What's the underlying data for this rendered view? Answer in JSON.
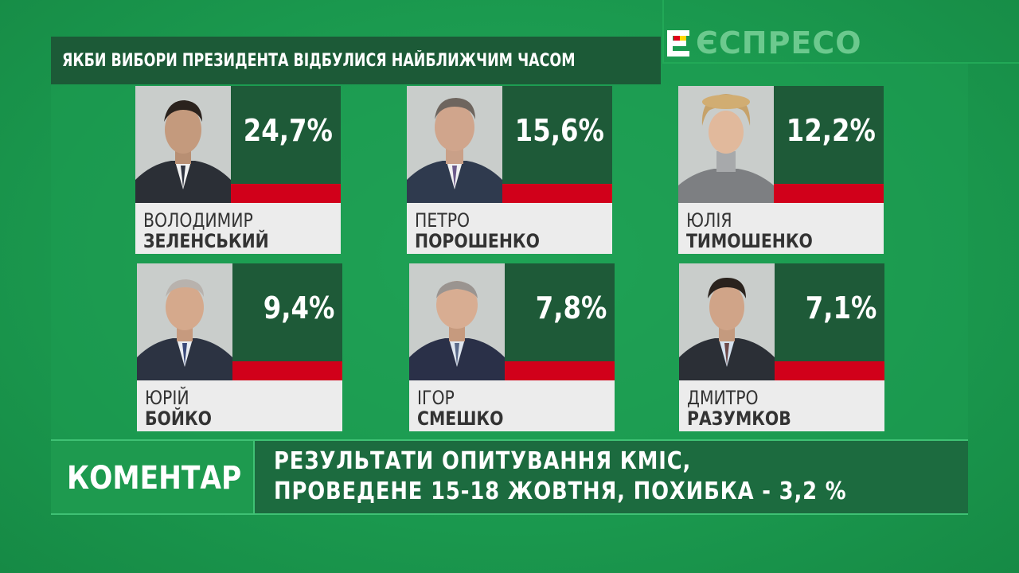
{
  "channel": {
    "logo_text": "ЄСПРЕСО"
  },
  "title": "ЯКБИ ВИБОРИ ПРЕЗИДЕНТА ВІДБУЛИСЯ НАЙБЛИЖЧИМ ЧАСОМ",
  "candidates": [
    {
      "first_name": "ВОЛОДИМИР",
      "last_name": "ЗЕЛЕНСЬКИЙ",
      "percent": "24,7%"
    },
    {
      "first_name": "ПЕТРО",
      "last_name": "ПОРОШЕНКО",
      "percent": "15,6%"
    },
    {
      "first_name": "ЮЛІЯ",
      "last_name": "ТИМОШЕНКО",
      "percent": "12,2%"
    },
    {
      "first_name": "ЮРІЙ",
      "last_name": "БОЙКО",
      "percent": "9,4%"
    },
    {
      "first_name": "ІГОР",
      "last_name": "СМЕШКО",
      "percent": "7,8%"
    },
    {
      "first_name": "ДМИТРО",
      "last_name": "РАЗУМКОВ",
      "percent": "7,1%"
    }
  ],
  "lower_third": {
    "label": "КОМЕНТАР",
    "line1": "РЕЗУЛЬТАТИ ОПИТУВАННЯ КМІС,",
    "line2": "ПРОВЕДЕНЕ 15-18 ЖОВТНЯ, ПОХИБКА - 3,2 %"
  },
  "colors": {
    "accent_red": "#d1001a",
    "dark_green": "#1e5a38",
    "background_green": "#1b9a4f"
  }
}
